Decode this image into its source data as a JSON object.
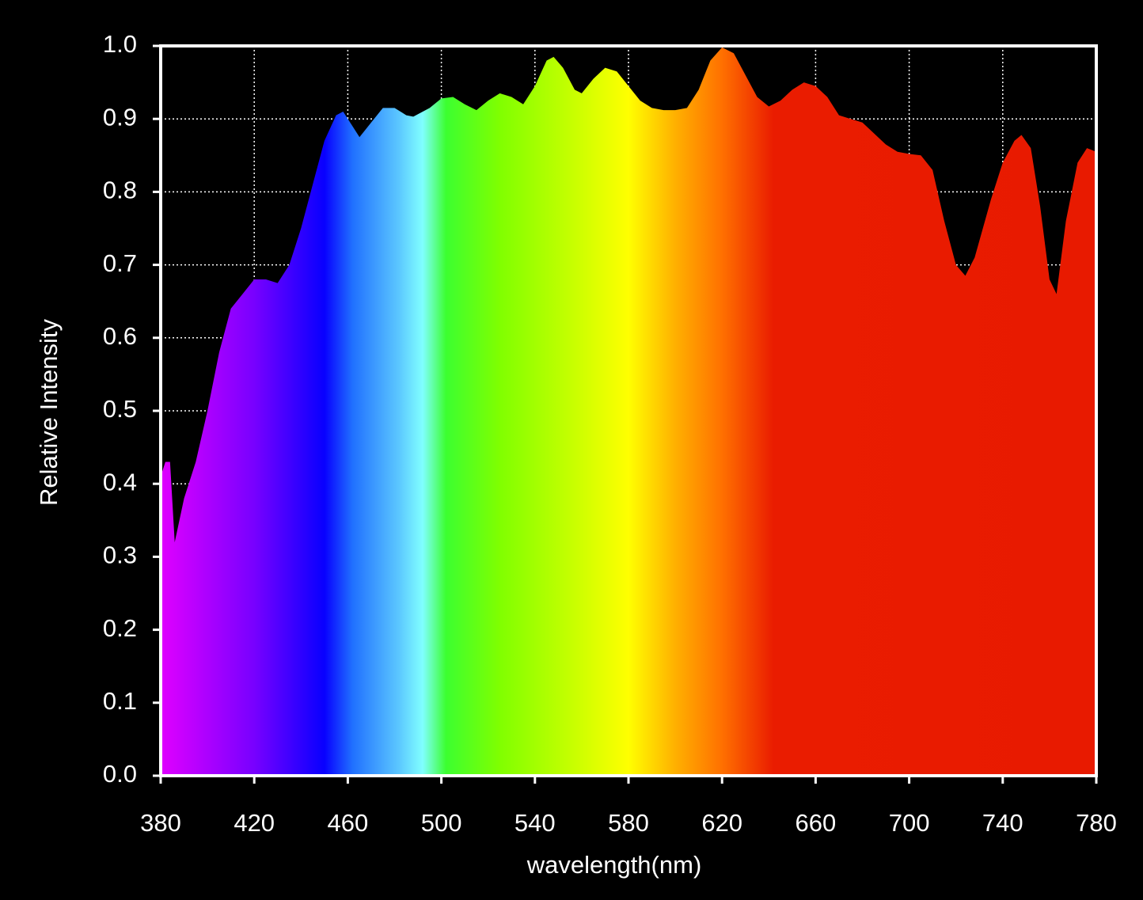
{
  "chart_data": {
    "type": "area",
    "x_label": "wavelength(nm)",
    "y_label": "Relative Intensity",
    "x": [
      380,
      382,
      384,
      386,
      390,
      395,
      400,
      405,
      410,
      415,
      420,
      425,
      430,
      435,
      440,
      445,
      450,
      455,
      458,
      462,
      465,
      470,
      475,
      480,
      485,
      488,
      495,
      500,
      505,
      510,
      515,
      520,
      525,
      530,
      535,
      540,
      545,
      548,
      552,
      557,
      560,
      565,
      570,
      575,
      580,
      585,
      590,
      595,
      600,
      605,
      610,
      615,
      620,
      625,
      630,
      635,
      640,
      645,
      650,
      655,
      660,
      665,
      670,
      675,
      680,
      685,
      690,
      695,
      700,
      705,
      710,
      715,
      720,
      724,
      728,
      735,
      740,
      745,
      748,
      752,
      756,
      760,
      763,
      767,
      772,
      776,
      780
    ],
    "values": [
      0.41,
      0.43,
      0.43,
      0.32,
      0.38,
      0.43,
      0.5,
      0.58,
      0.64,
      0.66,
      0.68,
      0.68,
      0.675,
      0.7,
      0.75,
      0.81,
      0.87,
      0.905,
      0.91,
      0.89,
      0.875,
      0.895,
      0.915,
      0.915,
      0.905,
      0.903,
      0.915,
      0.928,
      0.93,
      0.92,
      0.912,
      0.925,
      0.935,
      0.93,
      0.92,
      0.945,
      0.98,
      0.985,
      0.97,
      0.94,
      0.935,
      0.955,
      0.97,
      0.965,
      0.945,
      0.925,
      0.915,
      0.912,
      0.912,
      0.915,
      0.94,
      0.98,
      0.998,
      0.99,
      0.96,
      0.93,
      0.917,
      0.925,
      0.94,
      0.95,
      0.945,
      0.93,
      0.905,
      0.9,
      0.895,
      0.88,
      0.865,
      0.855,
      0.852,
      0.85,
      0.83,
      0.76,
      0.7,
      0.685,
      0.71,
      0.79,
      0.84,
      0.87,
      0.878,
      0.86,
      0.78,
      0.68,
      0.66,
      0.76,
      0.84,
      0.86,
      0.855
    ],
    "fill_stops": [
      {
        "x": 380,
        "color": "#e000ff"
      },
      {
        "x": 420,
        "color": "#7800ff"
      },
      {
        "x": 450,
        "color": "#0800ff"
      },
      {
        "x": 462,
        "color": "#2070ff"
      },
      {
        "x": 482,
        "color": "#5cc8ff"
      },
      {
        "x": 492,
        "color": "#80ffff"
      },
      {
        "x": 502,
        "color": "#3cff30"
      },
      {
        "x": 525,
        "color": "#80ff00"
      },
      {
        "x": 560,
        "color": "#d0ff00"
      },
      {
        "x": 580,
        "color": "#ffff00"
      },
      {
        "x": 600,
        "color": "#ffb000"
      },
      {
        "x": 620,
        "color": "#ff7000"
      },
      {
        "x": 642,
        "color": "#ea1c00"
      },
      {
        "x": 780,
        "color": "#e81a00"
      }
    ],
    "xlim": [
      380,
      780
    ],
    "ylim": [
      0,
      1
    ],
    "xticks": [
      380,
      420,
      460,
      500,
      540,
      580,
      620,
      660,
      700,
      740,
      780
    ],
    "yticks": [
      {
        "value": 0,
        "label": "0.0"
      },
      0.1,
      0.2,
      0.3,
      0.4,
      0.5,
      0.6,
      0.7,
      0.8,
      0.9,
      {
        "value": 1,
        "label": "1.0"
      }
    ],
    "grid": true
  }
}
